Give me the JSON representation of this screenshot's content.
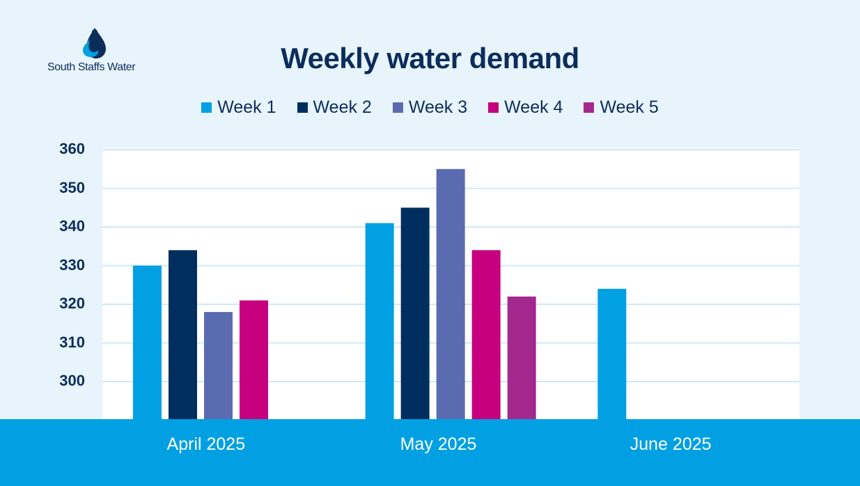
{
  "logo": {
    "text": "South Staffs Water"
  },
  "colors": {
    "background": "#e8f4fc",
    "plot_background": "#ffffff",
    "footer": "#00a0e3",
    "title": "#0c2d5a",
    "gridline": "#cfe8f6"
  },
  "chart_data": {
    "type": "bar",
    "title": "Weekly water demand",
    "xlabel": "",
    "ylabel": "",
    "ylim": [
      290,
      360
    ],
    "yticks": [
      300,
      310,
      320,
      330,
      340,
      350,
      360
    ],
    "categories": [
      "April 2025",
      "May 2025",
      "June 2025"
    ],
    "legend_position": "top-center",
    "grid": true,
    "series": [
      {
        "name": "Week 1",
        "color": "#00a0e3",
        "values": [
          330,
          341,
          324
        ]
      },
      {
        "name": "Week 2",
        "color": "#002f5f",
        "values": [
          334,
          345,
          null
        ]
      },
      {
        "name": "Week 3",
        "color": "#5b6bb0",
        "values": [
          318,
          355,
          null
        ]
      },
      {
        "name": "Week 4",
        "color": "#c6007e",
        "values": [
          321,
          334,
          null
        ]
      },
      {
        "name": "Week 5",
        "color": "#a4298f",
        "values": [
          null,
          322,
          null
        ]
      }
    ]
  }
}
